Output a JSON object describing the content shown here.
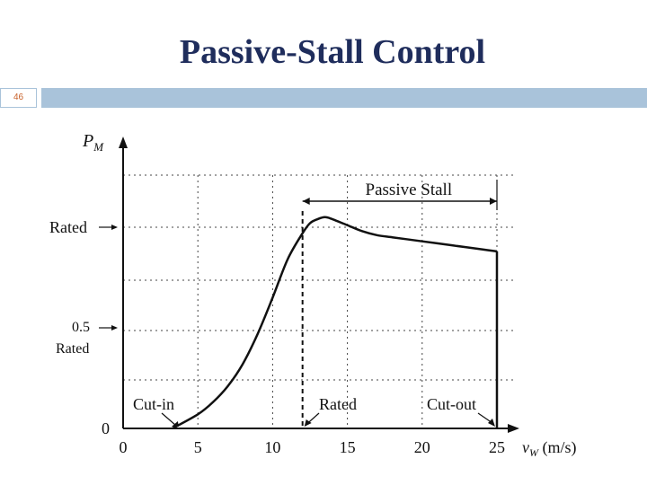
{
  "slide": {
    "title": "Passive-Stall Control",
    "number": "46"
  },
  "chart_data": {
    "type": "line",
    "title": "Passive-Stall Control",
    "xlabel": "v_W (m/s)",
    "ylabel": "P_M",
    "xlim": [
      0,
      25
    ],
    "xticks": [
      "0",
      "5",
      "10",
      "15",
      "20",
      "25"
    ],
    "yticks": [
      {
        "label": "0",
        "value": 0
      },
      {
        "label": "0.5 Rated",
        "value": 0.5
      },
      {
        "label": "Rated",
        "value": 1.0
      }
    ],
    "grid": true,
    "series": [
      {
        "x": [
          3.3,
          5,
          6,
          7,
          8,
          9,
          10,
          11,
          12,
          12.5,
          13,
          13.5,
          14,
          15,
          16,
          17,
          18,
          19,
          20,
          21,
          22,
          23,
          24,
          25
        ],
        "y": [
          0.0,
          0.07,
          0.13,
          0.21,
          0.32,
          0.47,
          0.65,
          0.84,
          0.97,
          1.02,
          1.04,
          1.05,
          1.04,
          1.01,
          0.98,
          0.96,
          0.95,
          0.94,
          0.93,
          0.92,
          0.91,
          0.9,
          0.89,
          0.88
        ]
      }
    ],
    "cutout_drop": {
      "x": 25,
      "from": 0.88,
      "to": 0
    },
    "annotations": [
      {
        "text": "Passive Stall",
        "span": [
          12,
          25
        ]
      },
      {
        "text": "Cut-in",
        "x": 3.3
      },
      {
        "text": "Rated",
        "x": 12
      },
      {
        "text": "Cut-out",
        "x": 25
      }
    ]
  }
}
